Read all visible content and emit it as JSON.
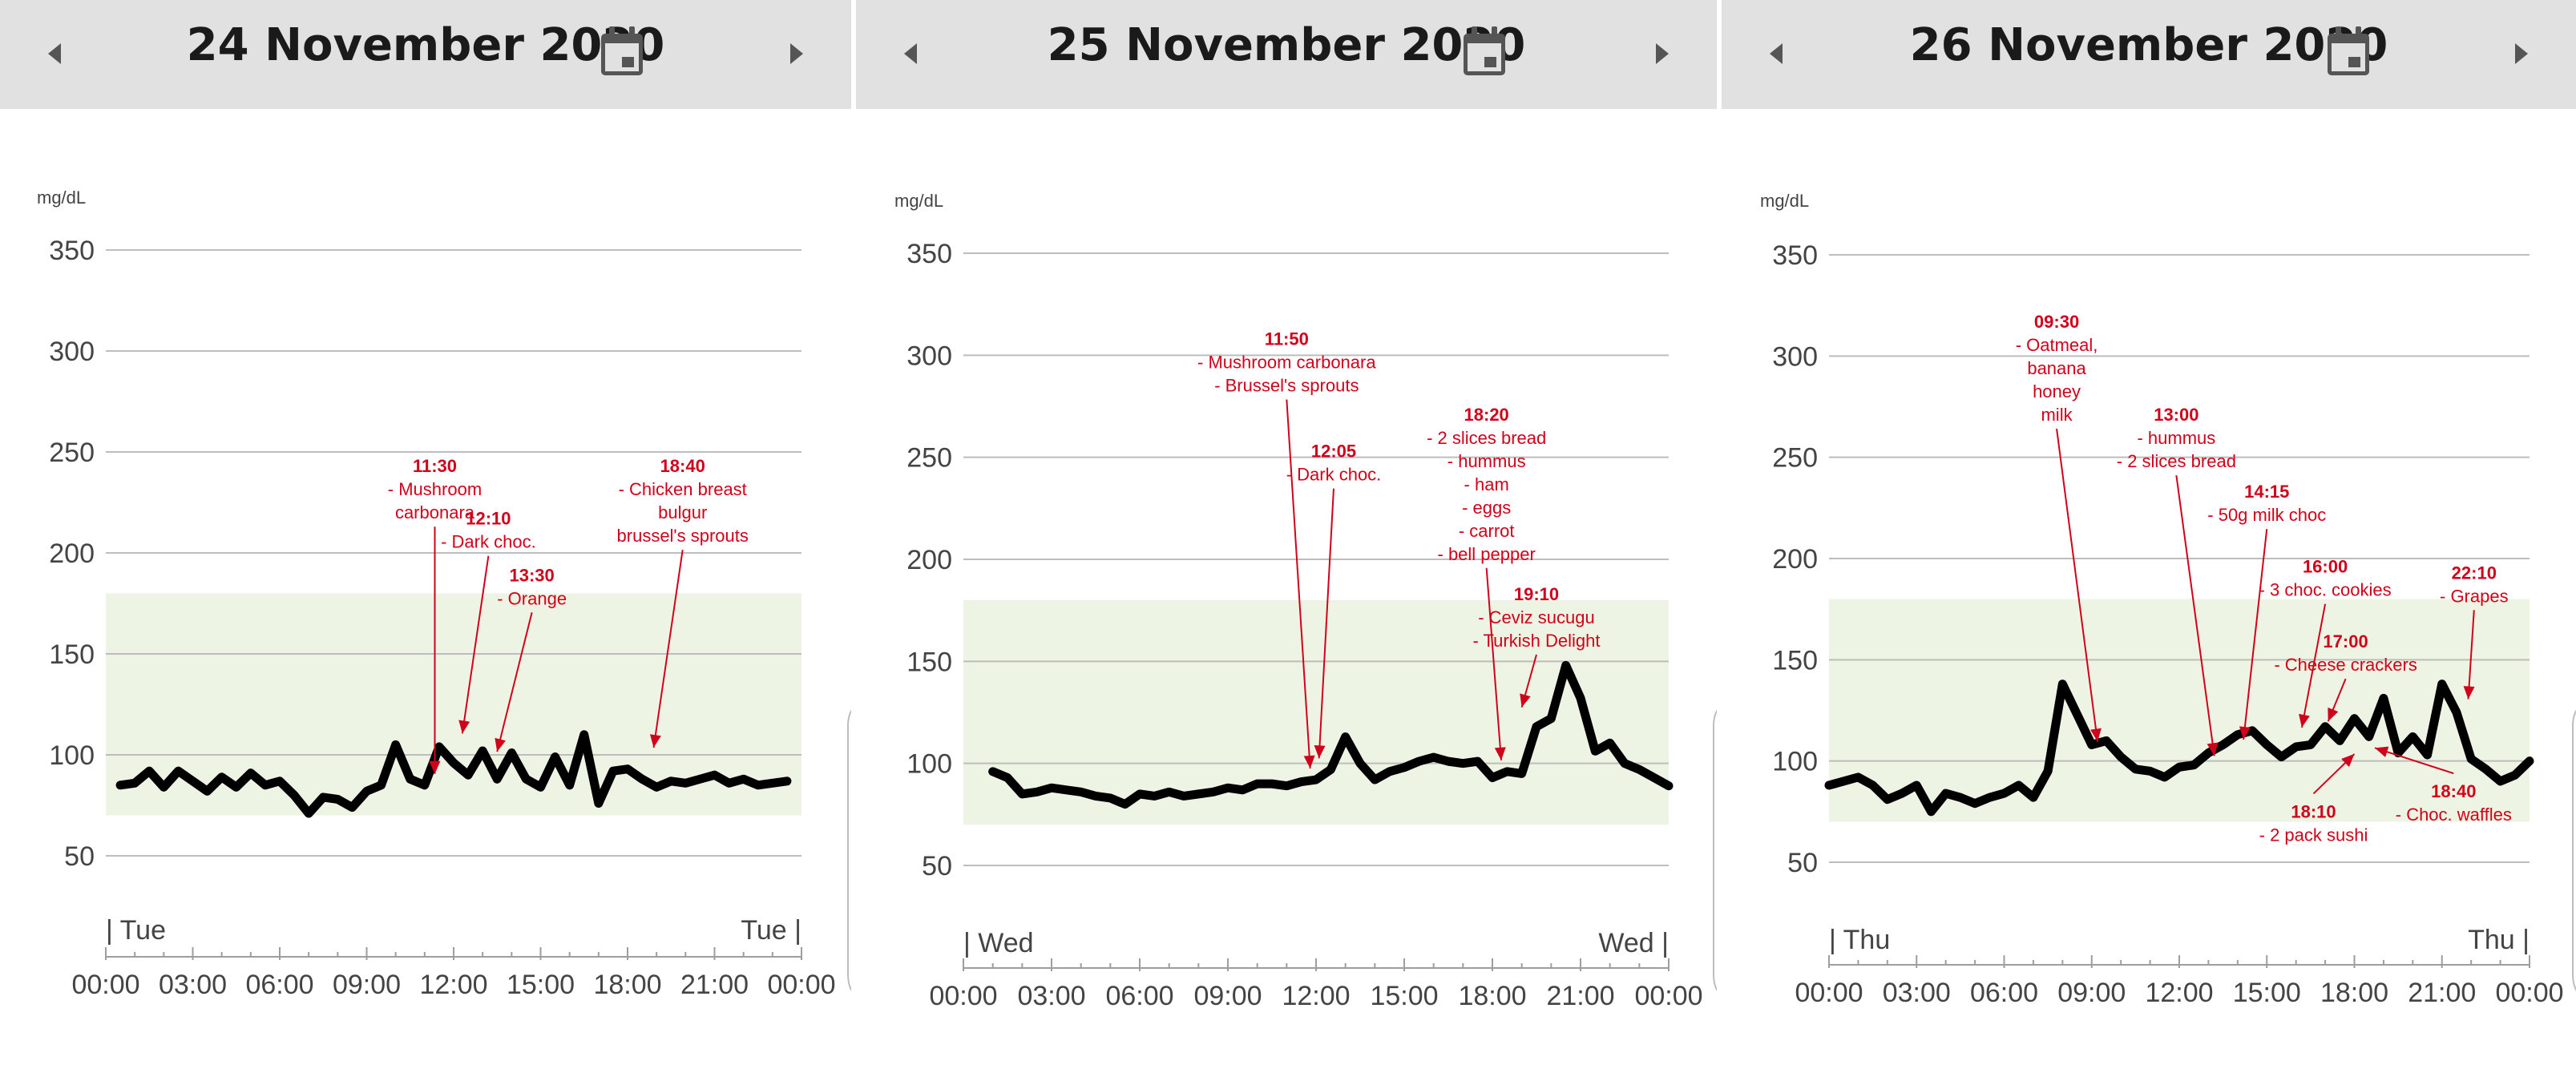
{
  "colors": {
    "header_bg": "#e1e1e1",
    "target_band": "#eef4e3",
    "line": "#000000",
    "annotation": "#d0021b",
    "grid": "#bdbdbd",
    "axis_text": "#444444"
  },
  "icons": {
    "prev": "triangle-left-icon",
    "next": "triangle-right-icon",
    "calendar": "calendar-icon"
  },
  "panels": [
    {
      "header": {
        "title": "24 November 2020"
      }
    },
    {
      "header": {
        "title": "25 November 2020"
      }
    },
    {
      "header": {
        "title": "26 November 2020"
      }
    }
  ],
  "chart_data": [
    {
      "type": "line",
      "unit_label": "mg/dL",
      "ylim": [
        0,
        350
      ],
      "yticks": [
        50,
        100,
        150,
        200,
        250,
        300,
        350
      ],
      "target_range": [
        70,
        180
      ],
      "day_label_start": "| Tue",
      "day_label_end": "Tue |",
      "xtick_labels": [
        "00:00",
        "03:00",
        "06:00",
        "09:00",
        "12:00",
        "15:00",
        "18:00",
        "21:00",
        "00:00"
      ],
      "x": [
        0.5,
        1,
        1.5,
        2,
        2.5,
        3,
        3.5,
        4,
        4.5,
        5,
        5.5,
        6,
        6.5,
        7,
        7.5,
        8,
        8.5,
        9,
        9.5,
        10,
        10.5,
        11,
        11.5,
        12,
        12.5,
        13,
        13.5,
        14,
        14.5,
        15,
        15.5,
        16,
        16.5,
        17,
        17.5,
        18,
        18.5,
        19,
        19.5,
        20,
        20.5,
        21,
        21.5,
        22,
        22.5,
        23,
        23.5
      ],
      "y": [
        85,
        86,
        92,
        84,
        92,
        87,
        82,
        89,
        84,
        91,
        85,
        87,
        80,
        71,
        79,
        78,
        74,
        82,
        85,
        105,
        88,
        85,
        104,
        96,
        90,
        102,
        88,
        101,
        88,
        84,
        99,
        85,
        110,
        76,
        92,
        93,
        88,
        84,
        87,
        86,
        88,
        90,
        86,
        88,
        85,
        86,
        87
      ],
      "annotations": [
        {
          "time": "11:30",
          "text": [
            "- Mushroom",
            "carbonara"
          ],
          "tx": 11.35,
          "tval": 240,
          "ax": 11.35,
          "aval": 85
        },
        {
          "time": "12:10",
          "text": [
            "- Dark choc."
          ],
          "tx": 13.2,
          "tval": 214,
          "ax": 12.3,
          "aval": 105
        },
        {
          "time": "13:30",
          "text": [
            "- Orange"
          ],
          "tx": 14.7,
          "tval": 186,
          "ax": 13.5,
          "aval": 96
        },
        {
          "time": "18:40",
          "text": [
            "- Chicken breast",
            "bulgur",
            "brussel's sprouts"
          ],
          "tx": 19.9,
          "tval": 240,
          "ax": 18.9,
          "aval": 98
        }
      ]
    },
    {
      "type": "line",
      "unit_label": "mg/dL",
      "ylim": [
        0,
        350
      ],
      "yticks": [
        50,
        100,
        150,
        200,
        250,
        300,
        350
      ],
      "target_range": [
        70,
        180
      ],
      "day_label_start": "| Wed",
      "day_label_end": "Wed |",
      "xtick_labels": [
        "00:00",
        "03:00",
        "06:00",
        "09:00",
        "12:00",
        "15:00",
        "18:00",
        "21:00",
        "00:00"
      ],
      "x": [
        1,
        1.5,
        2,
        2.5,
        3,
        3.5,
        4,
        4.5,
        5,
        5.5,
        6,
        6.5,
        7,
        7.5,
        8,
        8.5,
        9,
        9.5,
        10,
        10.5,
        11,
        11.5,
        12,
        12.5,
        13,
        13.5,
        14,
        14.5,
        15,
        15.5,
        16,
        16.5,
        17,
        17.5,
        18,
        18.5,
        19,
        19.5,
        20,
        20.5,
        21,
        21.5,
        22,
        22.5,
        23,
        23.5,
        24
      ],
      "y": [
        96,
        93,
        85,
        86,
        88,
        87,
        86,
        84,
        83,
        80,
        85,
        84,
        86,
        84,
        85,
        86,
        88,
        87,
        90,
        90,
        89,
        91,
        92,
        97,
        113,
        100,
        92,
        96,
        98,
        101,
        103,
        101,
        100,
        101,
        93,
        96,
        95,
        118,
        122,
        148,
        132,
        106,
        110,
        100,
        97,
        93,
        89
      ],
      "annotations": [
        {
          "time": "11:50",
          "text": [
            "- Mushroom carbonara",
            "- Brussel's sprouts"
          ],
          "tx": 11.0,
          "tval": 305,
          "ax": 11.8,
          "aval": 92
        },
        {
          "time": "12:05",
          "text": [
            "- Dark choc."
          ],
          "tx": 12.6,
          "tval": 250,
          "ax": 12.1,
          "aval": 97
        },
        {
          "time": "18:20",
          "text": [
            "- 2 slices bread",
            "- hummus",
            "- ham",
            "- eggs",
            "- carrot",
            "- bell pepper"
          ],
          "tx": 17.8,
          "tval": 268,
          "ax": 18.3,
          "aval": 96
        },
        {
          "time": "19:10",
          "text": [
            "- Ceviz sucugu",
            "- Turkish Delight"
          ],
          "tx": 19.5,
          "tval": 180,
          "ax": 19.0,
          "aval": 122
        }
      ]
    },
    {
      "type": "line",
      "unit_label": "mg/dL",
      "ylim": [
        0,
        350
      ],
      "yticks": [
        50,
        100,
        150,
        200,
        250,
        300,
        350
      ],
      "target_range": [
        70,
        180
      ],
      "day_label_start": "| Thu",
      "day_label_end": "Thu |",
      "xtick_labels": [
        "00:00",
        "03:00",
        "06:00",
        "09:00",
        "12:00",
        "15:00",
        "18:00",
        "21:00",
        "00:00"
      ],
      "x": [
        0,
        1,
        1.5,
        2,
        2.5,
        3,
        3.5,
        4,
        4.5,
        5,
        5.5,
        6,
        6.5,
        7,
        7.5,
        8,
        8.5,
        9,
        9.5,
        10,
        10.5,
        11,
        11.5,
        12,
        12.5,
        13,
        13.5,
        14,
        14.5,
        15,
        15.5,
        16,
        16.5,
        17,
        17.5,
        18,
        18.5,
        19,
        19.5,
        20,
        20.5,
        21,
        21.5,
        22,
        22.5,
        23,
        23.5,
        24
      ],
      "y": [
        88,
        92,
        88,
        81,
        84,
        88,
        75,
        84,
        82,
        79,
        82,
        84,
        88,
        82,
        95,
        138,
        123,
        108,
        110,
        102,
        96,
        95,
        92,
        97,
        98,
        104,
        108,
        113,
        115,
        108,
        102,
        107,
        108,
        117,
        110,
        121,
        112,
        131,
        104,
        112,
        103,
        138,
        124,
        101,
        96,
        90,
        93,
        100
      ],
      "annotations": [
        {
          "time": "09:30",
          "text": [
            "- Oatmeal,",
            "banana",
            "honey",
            "milk"
          ],
          "tx": 7.8,
          "tval": 314,
          "ax": 9.2,
          "aval": 104
        },
        {
          "time": "13:00",
          "text": [
            "- hummus",
            "- 2 slices bread"
          ],
          "tx": 11.9,
          "tval": 268,
          "ax": 13.2,
          "aval": 97
        },
        {
          "time": "14:15",
          "text": [
            "- 50g milk choc"
          ],
          "tx": 15.0,
          "tval": 230,
          "ax": 14.2,
          "aval": 105
        },
        {
          "time": "16:00",
          "text": [
            "- 3 choc. cookies"
          ],
          "tx": 17.0,
          "tval": 193,
          "ax": 16.2,
          "aval": 111
        },
        {
          "time": "17:00",
          "text": [
            "- Cheese crackers"
          ],
          "tx": 17.7,
          "tval": 156,
          "ax": 17.1,
          "aval": 114
        },
        {
          "time": "22:10",
          "text": [
            "- Grapes"
          ],
          "tx": 22.1,
          "tval": 190,
          "ax": 21.9,
          "aval": 125
        },
        {
          "time": "18:10",
          "text": [
            "- 2 pack sushi"
          ],
          "tx": 16.6,
          "tval": 72,
          "ax": 18.0,
          "aval": 109
        },
        {
          "time": "18:40",
          "text": [
            "- Choc. waffles"
          ],
          "tx": 21.4,
          "tval": 82,
          "ax": 18.7,
          "aval": 112
        }
      ]
    }
  ]
}
